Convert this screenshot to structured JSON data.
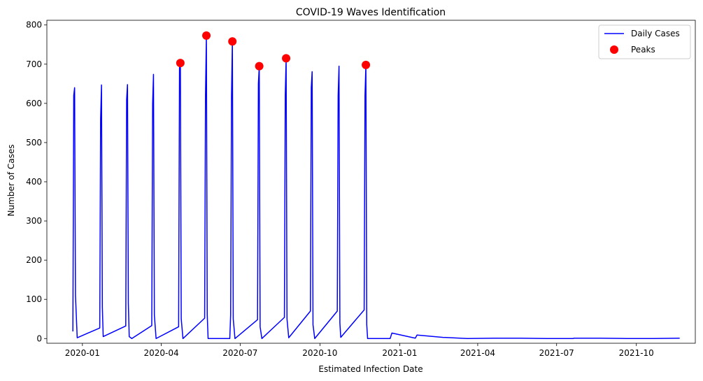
{
  "chart_data": {
    "type": "line",
    "title": "COVID-19 Waves Identification",
    "xlabel": "Estimated Infection Date",
    "ylabel": "Number of Cases",
    "xlim": [
      "2019-11-21",
      "2021-12-08"
    ],
    "ylim": [
      -12,
      812
    ],
    "x_ticks": [
      {
        "date": "2020-01-01",
        "label": "2020-01"
      },
      {
        "date": "2020-04-01",
        "label": "2020-04"
      },
      {
        "date": "2020-07-01",
        "label": "2020-07"
      },
      {
        "date": "2020-10-01",
        "label": "2020-10"
      },
      {
        "date": "2021-01-01",
        "label": "2021-01"
      },
      {
        "date": "2021-04-01",
        "label": "2021-04"
      },
      {
        "date": "2021-07-01",
        "label": "2021-07"
      },
      {
        "date": "2021-10-01",
        "label": "2021-10"
      }
    ],
    "y_ticks": [
      0,
      100,
      200,
      300,
      400,
      500,
      600,
      700,
      800
    ],
    "legend": {
      "position": "top-right",
      "entries": [
        {
          "label": "Daily Cases",
          "kind": "line",
          "color": "#0000ff"
        },
        {
          "label": "Peaks",
          "kind": "marker",
          "color": "#ff0000"
        }
      ]
    },
    "series": [
      {
        "name": "Daily Cases",
        "color": "#0000ff",
        "points": [
          [
            "2019-12-21",
            18
          ],
          [
            "2019-12-22",
            620
          ],
          [
            "2019-12-23",
            640
          ],
          [
            "2019-12-24",
            110
          ],
          [
            "2019-12-26",
            2
          ],
          [
            "2020-01-21",
            27
          ],
          [
            "2020-01-22",
            560
          ],
          [
            "2020-01-23",
            647
          ],
          [
            "2020-01-24",
            80
          ],
          [
            "2020-01-25",
            5
          ],
          [
            "2020-02-20",
            32
          ],
          [
            "2020-02-21",
            610
          ],
          [
            "2020-02-22",
            648
          ],
          [
            "2020-02-23",
            90
          ],
          [
            "2020-02-24",
            5
          ],
          [
            "2020-02-27",
            0
          ],
          [
            "2020-03-21",
            33
          ],
          [
            "2020-03-22",
            600
          ],
          [
            "2020-03-23",
            674
          ],
          [
            "2020-03-24",
            60
          ],
          [
            "2020-03-26",
            0
          ],
          [
            "2020-04-21",
            30
          ],
          [
            "2020-04-22",
            690
          ],
          [
            "2020-04-23",
            703
          ],
          [
            "2020-04-24",
            50
          ],
          [
            "2020-04-26",
            0
          ],
          [
            "2020-05-21",
            52
          ],
          [
            "2020-05-22",
            620
          ],
          [
            "2020-05-23",
            773
          ],
          [
            "2020-05-24",
            60
          ],
          [
            "2020-05-25",
            0
          ],
          [
            "2020-06-19",
            0
          ],
          [
            "2020-06-20",
            60
          ],
          [
            "2020-06-21",
            620
          ],
          [
            "2020-06-22",
            758
          ],
          [
            "2020-06-23",
            50
          ],
          [
            "2020-06-25",
            0
          ],
          [
            "2020-07-21",
            48
          ],
          [
            "2020-07-22",
            650
          ],
          [
            "2020-07-23",
            695
          ],
          [
            "2020-07-24",
            30
          ],
          [
            "2020-07-26",
            0
          ],
          [
            "2020-08-21",
            54
          ],
          [
            "2020-08-22",
            620
          ],
          [
            "2020-08-23",
            715
          ],
          [
            "2020-08-24",
            50
          ],
          [
            "2020-08-26",
            2
          ],
          [
            "2020-09-20",
            70
          ],
          [
            "2020-09-21",
            640
          ],
          [
            "2020-09-22",
            681
          ],
          [
            "2020-09-23",
            35
          ],
          [
            "2020-09-25",
            0
          ],
          [
            "2020-10-21",
            70
          ],
          [
            "2020-10-22",
            620
          ],
          [
            "2020-10-23",
            695
          ],
          [
            "2020-10-24",
            40
          ],
          [
            "2020-10-25",
            3
          ],
          [
            "2020-11-21",
            73
          ],
          [
            "2020-11-22",
            620
          ],
          [
            "2020-11-23",
            698
          ],
          [
            "2020-11-24",
            35
          ],
          [
            "2020-11-25",
            0
          ],
          [
            "2020-12-21",
            0
          ],
          [
            "2020-12-23",
            14
          ],
          [
            "2021-01-19",
            1
          ],
          [
            "2021-01-21",
            9
          ],
          [
            "2021-02-20",
            3
          ],
          [
            "2021-03-20",
            0
          ],
          [
            "2021-04-20",
            1
          ],
          [
            "2021-05-20",
            1
          ],
          [
            "2021-06-20",
            0
          ],
          [
            "2021-07-20",
            0
          ],
          [
            "2021-07-21",
            1
          ],
          [
            "2021-08-20",
            1
          ],
          [
            "2021-09-20",
            0
          ],
          [
            "2021-10-20",
            0
          ],
          [
            "2021-11-20",
            1
          ]
        ]
      },
      {
        "name": "Peaks",
        "type": "scatter",
        "color": "#ff0000",
        "points": [
          [
            "2020-04-23",
            703
          ],
          [
            "2020-05-23",
            773
          ],
          [
            "2020-06-22",
            758
          ],
          [
            "2020-07-23",
            695
          ],
          [
            "2020-08-23",
            715
          ],
          [
            "2020-11-23",
            698
          ]
        ]
      }
    ]
  }
}
